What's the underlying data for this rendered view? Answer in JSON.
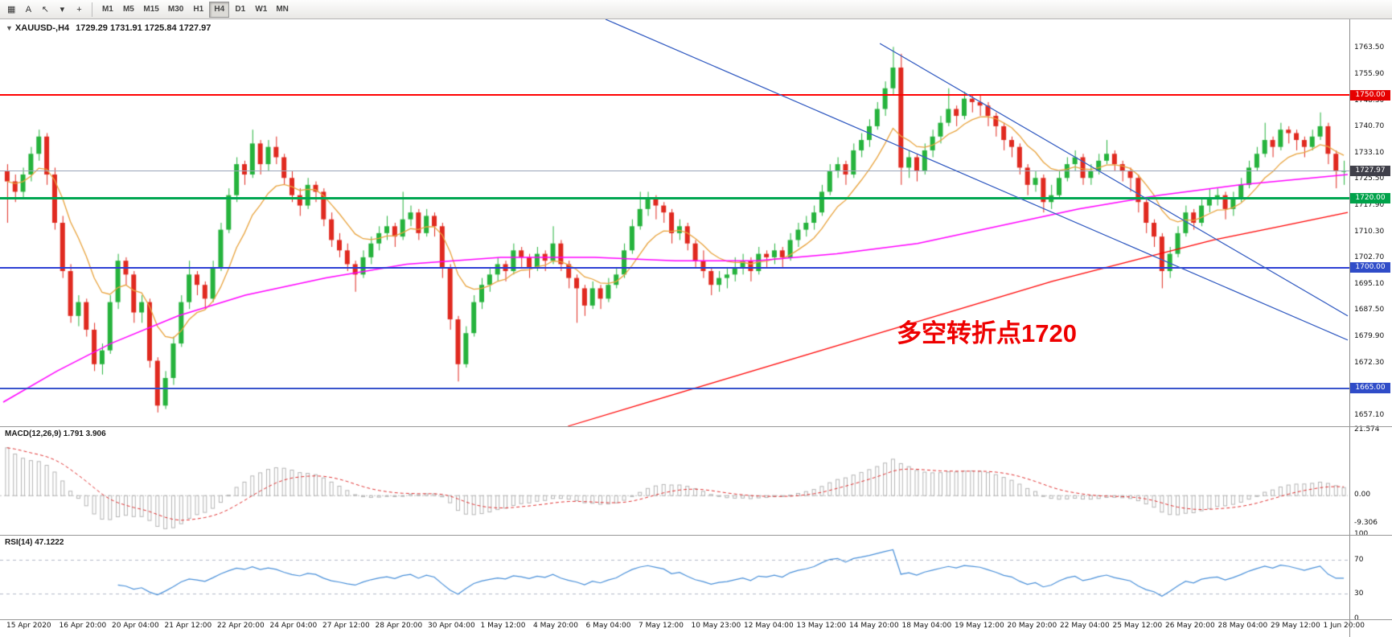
{
  "toolbar": {
    "icons": [
      {
        "name": "chart-icon",
        "glyph": "▦"
      },
      {
        "name": "text-tool-icon",
        "glyph": "A"
      },
      {
        "name": "cursor-tool-icon",
        "glyph": "↖"
      },
      {
        "name": "dropdown-arrow-icon",
        "glyph": "▾"
      },
      {
        "name": "crosshair-tool-icon",
        "glyph": "+"
      }
    ],
    "timeframes": [
      {
        "label": "M1",
        "active": false
      },
      {
        "label": "M5",
        "active": false
      },
      {
        "label": "M15",
        "active": false
      },
      {
        "label": "M30",
        "active": false
      },
      {
        "label": "H1",
        "active": false
      },
      {
        "label": "H4",
        "active": true
      },
      {
        "label": "D1",
        "active": false
      },
      {
        "label": "W1",
        "active": false
      },
      {
        "label": "MN",
        "active": false
      }
    ]
  },
  "chart": {
    "symbol_label": "XAUUSD-,H4",
    "ohlc": "1729.29 1731.91 1725.84 1727.97",
    "annotation": {
      "text": "多空转折点1720",
      "color": "#ee0000"
    },
    "scale": {
      "min": 1654,
      "max": 1772
    },
    "colors": {
      "bull": "#26b33d",
      "bear": "#e02a20",
      "trendline": "#3b62c4",
      "fast_ma": "#e8a33d",
      "medium_ma": "#ff00ff",
      "slow_ma": "#ff0000"
    },
    "price_axis": {
      "labels": [
        "1763.50",
        "1755.90",
        "1748.30",
        "1740.70",
        "1733.10",
        "1725.50",
        "1717.90",
        "1710.30",
        "1702.70",
        "1695.10",
        "1687.50",
        "1679.90",
        "1672.30",
        "1664.70",
        "1657.10"
      ]
    },
    "badges": [
      {
        "text": "1750.00",
        "price": 1750.0,
        "bg": "#e60000"
      },
      {
        "text": "1727.97",
        "price": 1727.97,
        "bg": "#40404a"
      },
      {
        "text": "1720.00",
        "price": 1720.0,
        "bg": "#00a24a"
      },
      {
        "text": "1700.00",
        "price": 1700.0,
        "bg": "#2f4cc8"
      },
      {
        "text": "1665.00",
        "price": 1665.0,
        "bg": "#2f4cc8"
      }
    ],
    "hlines": [
      {
        "name": "resistance-line-1750",
        "price": 1750.0,
        "color": "#ff0000",
        "thickness": 2
      },
      {
        "name": "pivot-line-1720",
        "price": 1720.0,
        "color": "#00a651",
        "thickness": 3
      },
      {
        "name": "support-line-1700",
        "price": 1700.0,
        "color": "#2d3fd4",
        "thickness": 2
      },
      {
        "name": "support-line-1665",
        "price": 1665.0,
        "color": "#3a55cc",
        "thickness": 2
      },
      {
        "name": "current-price-line",
        "price": 1727.97,
        "color": "#9aa4b8",
        "thickness": 1
      }
    ],
    "trendlines": [
      {
        "from": [
          0.448,
          1772
        ],
        "to": [
          1.0,
          1679
        ]
      },
      {
        "from": [
          0.652,
          1765
        ],
        "to": [
          1.0,
          1686
        ]
      }
    ],
    "medium_ma_points": [
      [
        0,
        1661
      ],
      [
        0.04,
        1670
      ],
      [
        0.08,
        1678
      ],
      [
        0.13,
        1686
      ],
      [
        0.18,
        1692
      ],
      [
        0.24,
        1697
      ],
      [
        0.3,
        1701
      ],
      [
        0.37,
        1703
      ],
      [
        0.44,
        1703
      ],
      [
        0.5,
        1702
      ],
      [
        0.56,
        1702
      ],
      [
        0.62,
        1704
      ],
      [
        0.68,
        1707
      ],
      [
        0.74,
        1712
      ],
      [
        0.8,
        1717
      ],
      [
        0.86,
        1721
      ],
      [
        0.92,
        1724
      ],
      [
        1.0,
        1727
      ]
    ],
    "slow_ma_points": [
      [
        0.42,
        1654
      ],
      [
        0.48,
        1661
      ],
      [
        0.54,
        1668
      ],
      [
        0.6,
        1675
      ],
      [
        0.66,
        1682
      ],
      [
        0.72,
        1689
      ],
      [
        0.78,
        1696
      ],
      [
        0.84,
        1702
      ],
      [
        0.9,
        1708
      ],
      [
        0.95,
        1712
      ],
      [
        1.0,
        1716
      ]
    ],
    "fast_ma_period": 9,
    "candles": [
      [
        1728,
        1730,
        1713,
        1725
      ],
      [
        1725,
        1727,
        1719,
        1722
      ],
      [
        1722,
        1729,
        1720,
        1727
      ],
      [
        1727,
        1735,
        1725,
        1733
      ],
      [
        1733,
        1740,
        1731,
        1738
      ],
      [
        1738,
        1739,
        1724,
        1727
      ],
      [
        1727,
        1729,
        1711,
        1713
      ],
      [
        1713,
        1715,
        1697,
        1699
      ],
      [
        1699,
        1701,
        1684,
        1686
      ],
      [
        1686,
        1692,
        1683,
        1690
      ],
      [
        1690,
        1691,
        1680,
        1682
      ],
      [
        1682,
        1684,
        1670,
        1672
      ],
      [
        1672,
        1678,
        1669,
        1676
      ],
      [
        1676,
        1692,
        1675,
        1690
      ],
      [
        1690,
        1704,
        1688,
        1702
      ],
      [
        1702,
        1703,
        1695,
        1698
      ],
      [
        1698,
        1699,
        1684,
        1687
      ],
      [
        1687,
        1692,
        1684,
        1690
      ],
      [
        1690,
        1691,
        1671,
        1673
      ],
      [
        1673,
        1674,
        1658,
        1660
      ],
      [
        1660,
        1670,
        1659,
        1668
      ],
      [
        1668,
        1680,
        1666,
        1678
      ],
      [
        1678,
        1692,
        1677,
        1690
      ],
      [
        1690,
        1702,
        1688,
        1698
      ],
      [
        1698,
        1699,
        1692,
        1695
      ],
      [
        1695,
        1696,
        1688,
        1691
      ],
      [
        1691,
        1702,
        1690,
        1700
      ],
      [
        1700,
        1713,
        1699,
        1711
      ],
      [
        1711,
        1723,
        1710,
        1721
      ],
      [
        1721,
        1732,
        1719,
        1730
      ],
      [
        1730,
        1731,
        1724,
        1727
      ],
      [
        1727,
        1740,
        1726,
        1736
      ],
      [
        1736,
        1737,
        1727,
        1730
      ],
      [
        1730,
        1737,
        1728,
        1735
      ],
      [
        1735,
        1738,
        1730,
        1732
      ],
      [
        1732,
        1733,
        1724,
        1726
      ],
      [
        1726,
        1728,
        1719,
        1721
      ],
      [
        1721,
        1723,
        1715,
        1718
      ],
      [
        1718,
        1726,
        1717,
        1724
      ],
      [
        1724,
        1725,
        1719,
        1722
      ],
      [
        1722,
        1723,
        1712,
        1714
      ],
      [
        1714,
        1716,
        1706,
        1708
      ],
      [
        1708,
        1710,
        1703,
        1705
      ],
      [
        1705,
        1707,
        1699,
        1701
      ],
      [
        1701,
        1702,
        1693,
        1698
      ],
      [
        1698,
        1705,
        1697,
        1703
      ],
      [
        1703,
        1709,
        1701,
        1707
      ],
      [
        1707,
        1712,
        1705,
        1710
      ],
      [
        1710,
        1715,
        1708,
        1712
      ],
      [
        1712,
        1713,
        1706,
        1709
      ],
      [
        1709,
        1722,
        1708,
        1714
      ],
      [
        1714,
        1718,
        1712,
        1716
      ],
      [
        1716,
        1717,
        1708,
        1710
      ],
      [
        1710,
        1717,
        1709,
        1715
      ],
      [
        1715,
        1716,
        1709,
        1712
      ],
      [
        1712,
        1713,
        1697,
        1700
      ],
      [
        1700,
        1701,
        1682,
        1685
      ],
      [
        1685,
        1686,
        1667,
        1672
      ],
      [
        1672,
        1683,
        1671,
        1681
      ],
      [
        1681,
        1692,
        1680,
        1690
      ],
      [
        1690,
        1697,
        1688,
        1695
      ],
      [
        1695,
        1700,
        1693,
        1698
      ],
      [
        1698,
        1703,
        1696,
        1701
      ],
      [
        1701,
        1702,
        1696,
        1699
      ],
      [
        1699,
        1707,
        1698,
        1705
      ],
      [
        1705,
        1706,
        1700,
        1703
      ],
      [
        1703,
        1704,
        1697,
        1700
      ],
      [
        1700,
        1706,
        1699,
        1704
      ],
      [
        1704,
        1705,
        1699,
        1702
      ],
      [
        1702,
        1712,
        1701,
        1707
      ],
      [
        1707,
        1708,
        1699,
        1701
      ],
      [
        1701,
        1702,
        1694,
        1697
      ],
      [
        1697,
        1698,
        1684,
        1694
      ],
      [
        1694,
        1695,
        1686,
        1689
      ],
      [
        1689,
        1696,
        1688,
        1694
      ],
      [
        1694,
        1695,
        1688,
        1691
      ],
      [
        1691,
        1697,
        1690,
        1695
      ],
      [
        1695,
        1700,
        1694,
        1698
      ],
      [
        1698,
        1707,
        1697,
        1705
      ],
      [
        1705,
        1714,
        1704,
        1712
      ],
      [
        1712,
        1722,
        1711,
        1717
      ],
      [
        1717,
        1722,
        1715,
        1720
      ],
      [
        1720,
        1721,
        1714,
        1718
      ],
      [
        1718,
        1719,
        1713,
        1716
      ],
      [
        1716,
        1717,
        1707,
        1710
      ],
      [
        1710,
        1714,
        1708,
        1712
      ],
      [
        1712,
        1713,
        1705,
        1707
      ],
      [
        1707,
        1708,
        1700,
        1702
      ],
      [
        1702,
        1705,
        1697,
        1699
      ],
      [
        1699,
        1700,
        1692,
        1695
      ],
      [
        1695,
        1699,
        1693,
        1697
      ],
      [
        1697,
        1700,
        1694,
        1698
      ],
      [
        1698,
        1703,
        1696,
        1700
      ],
      [
        1700,
        1704,
        1698,
        1702
      ],
      [
        1702,
        1703,
        1696,
        1699
      ],
      [
        1699,
        1706,
        1698,
        1704
      ],
      [
        1704,
        1705,
        1700,
        1703
      ],
      [
        1703,
        1707,
        1701,
        1705
      ],
      [
        1705,
        1706,
        1700,
        1703
      ],
      [
        1703,
        1710,
        1702,
        1708
      ],
      [
        1708,
        1713,
        1706,
        1711
      ],
      [
        1711,
        1715,
        1709,
        1713
      ],
      [
        1713,
        1718,
        1711,
        1716
      ],
      [
        1716,
        1724,
        1715,
        1722
      ],
      [
        1722,
        1730,
        1721,
        1728
      ],
      [
        1728,
        1732,
        1726,
        1730
      ],
      [
        1730,
        1731,
        1724,
        1727
      ],
      [
        1727,
        1736,
        1726,
        1734
      ],
      [
        1734,
        1739,
        1732,
        1737
      ],
      [
        1737,
        1743,
        1735,
        1741
      ],
      [
        1741,
        1748,
        1740,
        1746
      ],
      [
        1746,
        1754,
        1744,
        1752
      ],
      [
        1752,
        1764,
        1750,
        1758
      ],
      [
        1758,
        1762,
        1724,
        1729
      ],
      [
        1729,
        1734,
        1726,
        1732
      ],
      [
        1732,
        1733,
        1725,
        1728
      ],
      [
        1728,
        1736,
        1727,
        1734
      ],
      [
        1734,
        1740,
        1732,
        1738
      ],
      [
        1738,
        1744,
        1736,
        1742
      ],
      [
        1742,
        1752,
        1741,
        1746
      ],
      [
        1746,
        1747,
        1741,
        1744
      ],
      [
        1744,
        1751,
        1743,
        1749
      ],
      [
        1749,
        1750,
        1745,
        1748
      ],
      [
        1748,
        1750,
        1744,
        1747
      ],
      [
        1747,
        1748,
        1741,
        1744
      ],
      [
        1744,
        1745,
        1738,
        1741
      ],
      [
        1741,
        1742,
        1734,
        1737
      ],
      [
        1737,
        1738,
        1732,
        1735
      ],
      [
        1735,
        1736,
        1727,
        1729
      ],
      [
        1729,
        1730,
        1721,
        1724
      ],
      [
        1724,
        1728,
        1722,
        1726
      ],
      [
        1726,
        1727,
        1716,
        1719
      ],
      [
        1719,
        1724,
        1717,
        1721
      ],
      [
        1721,
        1728,
        1720,
        1726
      ],
      [
        1726,
        1732,
        1725,
        1730
      ],
      [
        1730,
        1734,
        1728,
        1732
      ],
      [
        1732,
        1733,
        1724,
        1726
      ],
      [
        1726,
        1730,
        1724,
        1728
      ],
      [
        1728,
        1733,
        1727,
        1731
      ],
      [
        1731,
        1737,
        1730,
        1733
      ],
      [
        1733,
        1734,
        1728,
        1730
      ],
      [
        1730,
        1731,
        1725,
        1728
      ],
      [
        1728,
        1729,
        1722,
        1726
      ],
      [
        1726,
        1727,
        1716,
        1719
      ],
      [
        1719,
        1720,
        1710,
        1713
      ],
      [
        1713,
        1714,
        1706,
        1709
      ],
      [
        1709,
        1710,
        1694,
        1699
      ],
      [
        1699,
        1706,
        1697,
        1704
      ],
      [
        1704,
        1712,
        1703,
        1710
      ],
      [
        1710,
        1718,
        1709,
        1716
      ],
      [
        1716,
        1717,
        1711,
        1713
      ],
      [
        1713,
        1720,
        1712,
        1718
      ],
      [
        1718,
        1723,
        1716,
        1720
      ],
      [
        1720,
        1723,
        1718,
        1721
      ],
      [
        1721,
        1722,
        1714,
        1717
      ],
      [
        1717,
        1722,
        1715,
        1720
      ],
      [
        1720,
        1726,
        1719,
        1724
      ],
      [
        1724,
        1731,
        1723,
        1729
      ],
      [
        1729,
        1735,
        1728,
        1733
      ],
      [
        1733,
        1742,
        1732,
        1737
      ],
      [
        1737,
        1738,
        1732,
        1735
      ],
      [
        1735,
        1742,
        1734,
        1740
      ],
      [
        1740,
        1741,
        1736,
        1739
      ],
      [
        1739,
        1740,
        1734,
        1737
      ],
      [
        1737,
        1738,
        1732,
        1735
      ],
      [
        1735,
        1740,
        1734,
        1738
      ],
      [
        1738,
        1745,
        1737,
        1741
      ],
      [
        1741,
        1742,
        1730,
        1733
      ],
      [
        1733,
        1734,
        1723,
        1728
      ],
      [
        1728,
        1731,
        1724,
        1728
      ]
    ]
  },
  "macd": {
    "label": "MACD(12,26,9) 1.791 3.906",
    "axis": [
      "21.574",
      "0.00",
      "-9.306"
    ],
    "range": {
      "min": -13,
      "max": 23
    },
    "fast": 12,
    "slow": 26,
    "signal": 9,
    "colors": {
      "histogram": "#b4b4b4",
      "signal": "#e03333"
    }
  },
  "rsi": {
    "label": "RSI(14) 47.1222",
    "axis": [
      "100",
      "70",
      "30",
      "0"
    ],
    "period": 14,
    "levels": [
      70,
      30
    ],
    "colors": {
      "line": "#4a90d9",
      "level": "#b3b9c9"
    }
  },
  "time_axis": {
    "labels": [
      "15 Apr 2020",
      "16 Apr 20:00",
      "20 Apr 04:00",
      "21 Apr 12:00",
      "22 Apr 20:00",
      "24 Apr 04:00",
      "27 Apr 12:00",
      "28 Apr 20:00",
      "30 Apr 04:00",
      "1 May 12:00",
      "4 May 20:00",
      "6 May 04:00",
      "7 May 12:00",
      "10 May 23:00",
      "12 May 04:00",
      "13 May 12:00",
      "14 May 20:00",
      "18 May 04:00",
      "19 May 12:00",
      "20 May 20:00",
      "22 May 04:00",
      "25 May 12:00",
      "26 May 20:00",
      "28 May 04:00",
      "29 May 12:00",
      "1 Jun 20:00"
    ]
  }
}
